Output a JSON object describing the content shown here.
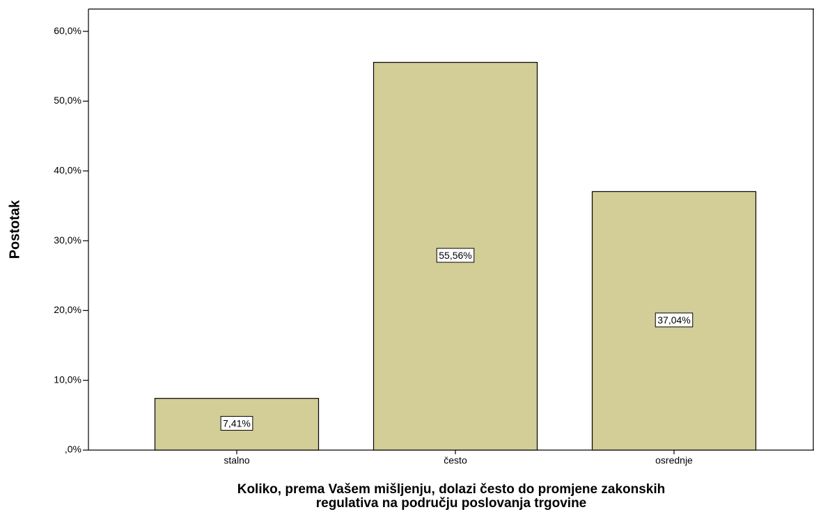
{
  "chart_data": {
    "type": "bar",
    "ylabel": "Postotak",
    "xlabel": [
      "Koliko, prema Vašem mišljenju, dolazi često do promjene zakonskih",
      "regulativa na području poslovanja trgovine"
    ],
    "categories": [
      "stalno",
      "često",
      "osrednje"
    ],
    "values": [
      7.41,
      55.56,
      37.04
    ],
    "value_labels": [
      "7,41%",
      "55,56%",
      "37,04%"
    ],
    "color": "#d3ce97",
    "ylim": [
      0,
      63.2
    ],
    "yticks": [
      {
        "value": 0,
        "label": ",0%"
      },
      {
        "value": 10,
        "label": "10,0%"
      },
      {
        "value": 20,
        "label": "20,0%"
      },
      {
        "value": 30,
        "label": "30,0%"
      },
      {
        "value": 40,
        "label": "40,0%"
      },
      {
        "value": 50,
        "label": "50,0%"
      },
      {
        "value": 60,
        "label": "60,0%"
      }
    ]
  }
}
